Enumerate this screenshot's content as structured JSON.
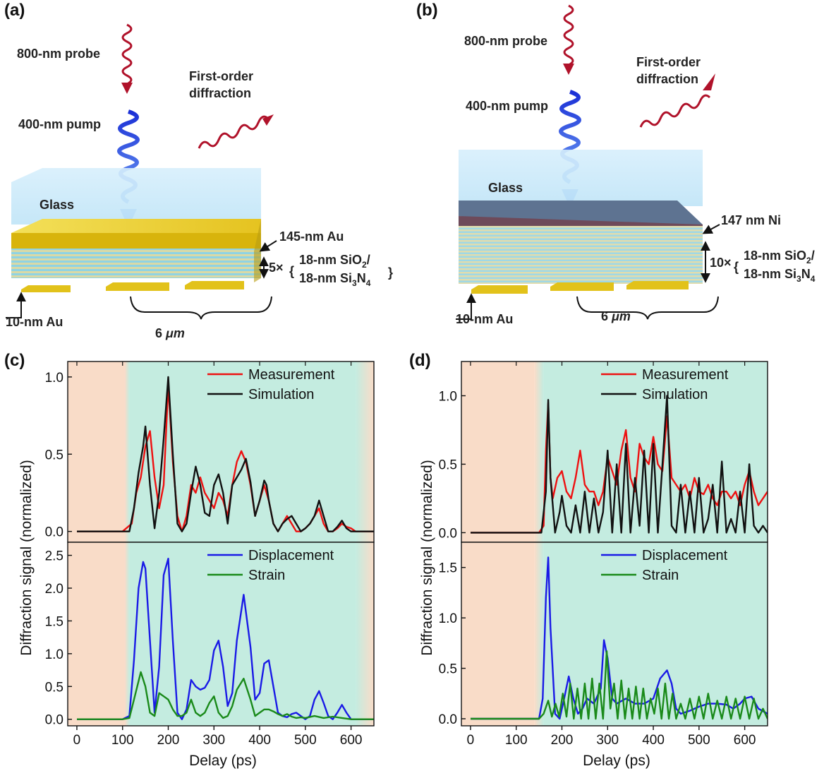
{
  "panels": {
    "a": {
      "label": "(a)",
      "probe": "800-nm probe",
      "pump": "400-nm pump",
      "diffraction": [
        "First-order",
        "diffraction"
      ],
      "glass": "Glass",
      "top_layer": "145-nm Au",
      "repeat": "5×",
      "layer1": "18-nm SiO",
      "layer1_sub": "2",
      "layer1_tail": "/",
      "layer2": "18-nm Si",
      "layer2_sub1": "3",
      "layer2_mid": "N",
      "layer2_sub2": "4",
      "grating": "10-nm Au",
      "period": "6 ",
      "period_unit": "μm"
    },
    "b": {
      "label": "(b)",
      "probe": "800-nm probe",
      "pump": "400-nm pump",
      "diffraction": [
        "First-order",
        "diffraction"
      ],
      "glass": "Glass",
      "top_layer": "147 nm Ni",
      "repeat": "10×",
      "layer1": "18-nm SiO",
      "layer1_sub": "2",
      "layer1_tail": "/",
      "layer2": "18-nm Si",
      "layer2_sub1": "3",
      "layer2_mid": "N",
      "layer2_sub2": "4",
      "grating": "10-nm Au",
      "period": "6 ",
      "period_unit": "μm"
    }
  },
  "colors": {
    "measurement": "#ee1111",
    "simulation": "#111111",
    "displacement": "#1a1ae6",
    "strain": "#1a8a1a",
    "shade_pre": "#f9dcc8",
    "shade_main": "#c4ece0",
    "gold": "#e2c21a",
    "nickel": "#6e4a5a",
    "glass": "#cfeafb",
    "probe": "#b0122a",
    "pump": "#2e56e6"
  },
  "chart_data": [
    {
      "id": "c-top",
      "type": "line",
      "panel_label": "(c)",
      "ylabel": "Diffraction signal (normalized)",
      "ylim": [
        -0.07,
        1.1
      ],
      "yticks": [
        "0.0",
        "0.5",
        "1.0"
      ],
      "ytick_values": [
        0,
        0.5,
        1.0
      ],
      "xlim": [
        -20,
        650
      ],
      "legend": [
        "Measurement",
        "Simulation"
      ],
      "shading": {
        "pre": [
          -20,
          105
        ],
        "main": [
          115,
          610
        ],
        "post": [
          610,
          650
        ]
      },
      "series": [
        {
          "name": "Measurement",
          "x": [
            0,
            100,
            120,
            130,
            140,
            150,
            160,
            170,
            180,
            190,
            200,
            210,
            220,
            230,
            240,
            250,
            260,
            270,
            280,
            290,
            300,
            310,
            320,
            330,
            340,
            350,
            360,
            370,
            380,
            390,
            400,
            410,
            420,
            430,
            440,
            450,
            460,
            470,
            480,
            490,
            500,
            510,
            520,
            530,
            540,
            550,
            560,
            570,
            580,
            590,
            600,
            610,
            620,
            650
          ],
          "y": [
            0,
            0.0,
            0.05,
            0.25,
            0.35,
            0.55,
            0.65,
            0.35,
            0.15,
            0.3,
            0.95,
            0.45,
            0.1,
            0.0,
            0.1,
            0.3,
            0.25,
            0.35,
            0.25,
            0.2,
            0.15,
            0.25,
            0.2,
            0.1,
            0.3,
            0.45,
            0.52,
            0.45,
            0.3,
            0.1,
            0.2,
            0.3,
            0.2,
            0.05,
            0.0,
            0.05,
            0.1,
            0.05,
            0.0,
            0.0,
            0.02,
            0.05,
            0.1,
            0.15,
            0.05,
            0.0,
            0.0,
            0.02,
            0.05,
            0.03,
            0.02,
            0.0,
            0.0,
            0.0
          ]
        },
        {
          "name": "Simulation",
          "x": [
            0,
            100,
            115,
            125,
            135,
            145,
            150,
            160,
            170,
            180,
            190,
            200,
            210,
            220,
            230,
            240,
            250,
            260,
            270,
            280,
            290,
            300,
            310,
            320,
            330,
            340,
            350,
            360,
            370,
            380,
            390,
            400,
            410,
            415,
            420,
            430,
            440,
            450,
            460,
            470,
            480,
            490,
            500,
            510,
            520,
            530,
            540,
            550,
            560,
            570,
            580,
            590,
            600,
            610,
            650
          ],
          "y": [
            0,
            0.0,
            0.0,
            0.15,
            0.38,
            0.55,
            0.68,
            0.3,
            0.02,
            0.25,
            0.6,
            1.0,
            0.5,
            0.05,
            0.0,
            0.05,
            0.25,
            0.42,
            0.3,
            0.12,
            0.1,
            0.3,
            0.37,
            0.25,
            0.05,
            0.3,
            0.35,
            0.4,
            0.47,
            0.32,
            0.1,
            0.2,
            0.33,
            0.3,
            0.2,
            0.05,
            0.0,
            0.05,
            0.08,
            0.1,
            0.05,
            0.0,
            0.02,
            0.05,
            0.1,
            0.2,
            0.1,
            0.0,
            0.0,
            0.03,
            0.07,
            0.02,
            0.0,
            0.0,
            0.0
          ]
        }
      ]
    },
    {
      "id": "c-bottom",
      "type": "line",
      "ylim": [
        -0.1,
        2.7
      ],
      "yticks": [
        "0.0",
        "0.5",
        "1.0",
        "1.5",
        "2.0",
        "2.5"
      ],
      "ytick_values": [
        0,
        0.5,
        1.0,
        1.5,
        2.0,
        2.5
      ],
      "xlim": [
        -20,
        650
      ],
      "xticks": [
        "0",
        "100",
        "200",
        "300",
        "400",
        "500",
        "600"
      ],
      "xtick_values": [
        0,
        100,
        200,
        300,
        400,
        500,
        600
      ],
      "xlabel": "Delay (ps)",
      "legend": [
        "Displacement",
        "Strain"
      ],
      "shading": {
        "pre": [
          -20,
          105
        ],
        "main": [
          115,
          610
        ],
        "post": [
          610,
          650
        ]
      },
      "series": [
        {
          "name": "Displacement",
          "x": [
            0,
            100,
            115,
            125,
            135,
            145,
            150,
            160,
            170,
            180,
            190,
            200,
            210,
            220,
            230,
            240,
            250,
            260,
            270,
            280,
            290,
            300,
            310,
            320,
            330,
            340,
            350,
            365,
            380,
            390,
            400,
            410,
            420,
            430,
            440,
            450,
            460,
            470,
            480,
            490,
            500,
            510,
            520,
            530,
            540,
            550,
            560,
            570,
            580,
            590,
            600,
            650
          ],
          "y": [
            0,
            0.0,
            0.05,
            0.9,
            2.0,
            2.4,
            2.3,
            1.2,
            0.1,
            0.8,
            2.2,
            2.45,
            1.2,
            0.1,
            0.0,
            0.15,
            0.6,
            0.5,
            0.45,
            0.48,
            0.6,
            1.05,
            1.2,
            0.8,
            0.2,
            0.4,
            1.2,
            1.9,
            1.1,
            0.3,
            0.4,
            0.85,
            0.9,
            0.5,
            0.1,
            0.05,
            0.03,
            0.08,
            0.1,
            0.05,
            0.0,
            0.05,
            0.3,
            0.43,
            0.25,
            0.05,
            0.0,
            0.1,
            0.22,
            0.1,
            0.0,
            0.0
          ]
        },
        {
          "name": "Strain",
          "x": [
            0,
            100,
            115,
            125,
            140,
            150,
            160,
            170,
            180,
            190,
            200,
            210,
            220,
            230,
            240,
            250,
            260,
            270,
            280,
            290,
            300,
            310,
            320,
            330,
            340,
            350,
            365,
            380,
            390,
            400,
            410,
            420,
            430,
            440,
            450,
            460,
            470,
            480,
            490,
            500,
            520,
            540,
            560,
            580,
            600,
            650
          ],
          "y": [
            0,
            0.0,
            0.02,
            0.3,
            0.72,
            0.5,
            0.1,
            0.05,
            0.4,
            0.35,
            0.3,
            0.15,
            0.05,
            0.05,
            0.1,
            0.3,
            0.1,
            0.05,
            0.1,
            0.25,
            0.35,
            0.1,
            0.02,
            0.05,
            0.2,
            0.45,
            0.62,
            0.3,
            0.05,
            0.1,
            0.15,
            0.15,
            0.12,
            0.08,
            0.05,
            0.08,
            0.04,
            0.02,
            0.03,
            0.02,
            0.05,
            0.02,
            0.04,
            0.02,
            0.0,
            0.0
          ]
        }
      ]
    },
    {
      "id": "d-top",
      "type": "line",
      "panel_label": "(d)",
      "ylabel": "Diffraction signal (normalized)",
      "ylim": [
        -0.07,
        1.25
      ],
      "yticks": [
        "0.0",
        "0.5",
        "1.0"
      ],
      "ytick_values": [
        0,
        0.5,
        1.0
      ],
      "xlim": [
        -20,
        650
      ],
      "legend": [
        "Measurement",
        "Simulation"
      ],
      "shading": {
        "pre": [
          -20,
          140
        ],
        "main": [
          160,
          650
        ]
      },
      "series": [
        {
          "name": "Measurement",
          "x": [
            0,
            150,
            160,
            165,
            170,
            175,
            180,
            190,
            200,
            210,
            220,
            230,
            240,
            250,
            260,
            270,
            280,
            290,
            300,
            310,
            320,
            330,
            340,
            350,
            360,
            370,
            380,
            390,
            400,
            410,
            420,
            430,
            440,
            450,
            460,
            470,
            480,
            490,
            500,
            510,
            520,
            530,
            540,
            550,
            560,
            570,
            580,
            590,
            600,
            610,
            620,
            630,
            640,
            650
          ],
          "y": [
            0,
            0.0,
            0.05,
            0.6,
            0.95,
            0.4,
            0.25,
            0.4,
            0.45,
            0.3,
            0.25,
            0.4,
            0.6,
            0.35,
            0.3,
            0.3,
            0.2,
            0.3,
            0.55,
            0.45,
            0.35,
            0.6,
            0.75,
            0.4,
            0.3,
            0.65,
            0.55,
            0.5,
            0.7,
            0.5,
            0.45,
            0.85,
            0.4,
            0.35,
            0.3,
            0.35,
            0.25,
            0.4,
            0.3,
            0.28,
            0.35,
            0.25,
            0.2,
            0.3,
            0.3,
            0.25,
            0.3,
            0.2,
            0.35,
            0.45,
            0.3,
            0.2,
            0.25,
            0.3
          ]
        },
        {
          "name": "Simulation",
          "x": [
            0,
            155,
            165,
            170,
            175,
            185,
            195,
            200,
            210,
            220,
            230,
            240,
            250,
            260,
            270,
            280,
            290,
            300,
            310,
            320,
            330,
            340,
            350,
            360,
            370,
            380,
            390,
            400,
            410,
            420,
            430,
            440,
            450,
            460,
            470,
            480,
            490,
            500,
            510,
            520,
            530,
            540,
            550,
            560,
            570,
            580,
            590,
            600,
            610,
            620,
            630,
            640,
            650
          ],
          "y": [
            0,
            0.0,
            0.3,
            0.97,
            0.4,
            0.0,
            0.15,
            0.27,
            0.05,
            0.0,
            0.2,
            0.0,
            0.3,
            0.0,
            0.25,
            0.0,
            0.15,
            0.6,
            0.0,
            0.5,
            0.0,
            0.65,
            0.0,
            0.4,
            0.05,
            0.6,
            0.0,
            0.65,
            0.0,
            0.5,
            1.0,
            0.05,
            0.0,
            0.35,
            0.0,
            0.3,
            0.0,
            0.4,
            0.0,
            0.1,
            0.35,
            0.0,
            0.52,
            0.0,
            0.1,
            0.0,
            0.3,
            0.0,
            0.5,
            0.05,
            0.0,
            0.05,
            0.0
          ]
        }
      ]
    },
    {
      "id": "d-bottom",
      "type": "line",
      "ylim": [
        -0.07,
        1.75
      ],
      "yticks": [
        "0.0",
        "0.5",
        "1.0",
        "1.5"
      ],
      "ytick_values": [
        0,
        0.5,
        1.0,
        1.5
      ],
      "xlim": [
        -20,
        650
      ],
      "xticks": [
        "0",
        "100",
        "200",
        "300",
        "400",
        "500",
        "600"
      ],
      "xtick_values": [
        0,
        100,
        200,
        300,
        400,
        500,
        600
      ],
      "xlabel": "Delay (ps)",
      "legend": [
        "Displacement",
        "Strain"
      ],
      "shading": {
        "pre": [
          -20,
          140
        ],
        "main": [
          160,
          650
        ]
      },
      "series": [
        {
          "name": "Displacement",
          "x": [
            0,
            150,
            158,
            165,
            170,
            175,
            185,
            195,
            205,
            215,
            225,
            235,
            245,
            255,
            270,
            285,
            292,
            300,
            310,
            320,
            340,
            360,
            380,
            400,
            415,
            430,
            440,
            450,
            460,
            480,
            500,
            520,
            540,
            560,
            575,
            590,
            600,
            615,
            630,
            650
          ],
          "y": [
            0,
            0.0,
            0.2,
            1.2,
            1.6,
            0.9,
            0.05,
            0.0,
            0.2,
            0.42,
            0.2,
            0.05,
            0.1,
            0.2,
            0.15,
            0.3,
            0.78,
            0.6,
            0.2,
            0.15,
            0.2,
            0.15,
            0.15,
            0.2,
            0.4,
            0.48,
            0.35,
            0.1,
            0.05,
            0.08,
            0.12,
            0.15,
            0.15,
            0.14,
            0.1,
            0.15,
            0.2,
            0.22,
            0.1,
            0.05
          ]
        },
        {
          "name": "Strain",
          "x": [
            0,
            150,
            160,
            170,
            178,
            186,
            194,
            202,
            210,
            218,
            226,
            234,
            242,
            250,
            258,
            266,
            274,
            282,
            290,
            298,
            306,
            314,
            322,
            330,
            338,
            346,
            354,
            362,
            370,
            378,
            386,
            394,
            402,
            410,
            418,
            426,
            434,
            442,
            450,
            460,
            470,
            480,
            490,
            500,
            510,
            520,
            530,
            540,
            550,
            560,
            570,
            580,
            590,
            600,
            610,
            620,
            630,
            640,
            650
          ],
          "y": [
            0,
            0.0,
            0.05,
            0.18,
            0.02,
            0.15,
            0.02,
            0.25,
            0.02,
            0.35,
            0.0,
            0.3,
            0.0,
            0.35,
            0.0,
            0.4,
            0.0,
            0.35,
            0.0,
            0.67,
            0.1,
            0.35,
            0.0,
            0.38,
            0.0,
            0.3,
            0.0,
            0.32,
            0.0,
            0.3,
            0.0,
            0.2,
            0.05,
            0.3,
            0.0,
            0.35,
            0.0,
            0.25,
            0.0,
            0.15,
            0.0,
            0.2,
            0.0,
            0.22,
            0.0,
            0.25,
            0.0,
            0.18,
            0.0,
            0.22,
            0.0,
            0.2,
            0.0,
            0.22,
            0.0,
            0.2,
            0.0,
            0.1,
            0.0
          ]
        }
      ]
    }
  ]
}
